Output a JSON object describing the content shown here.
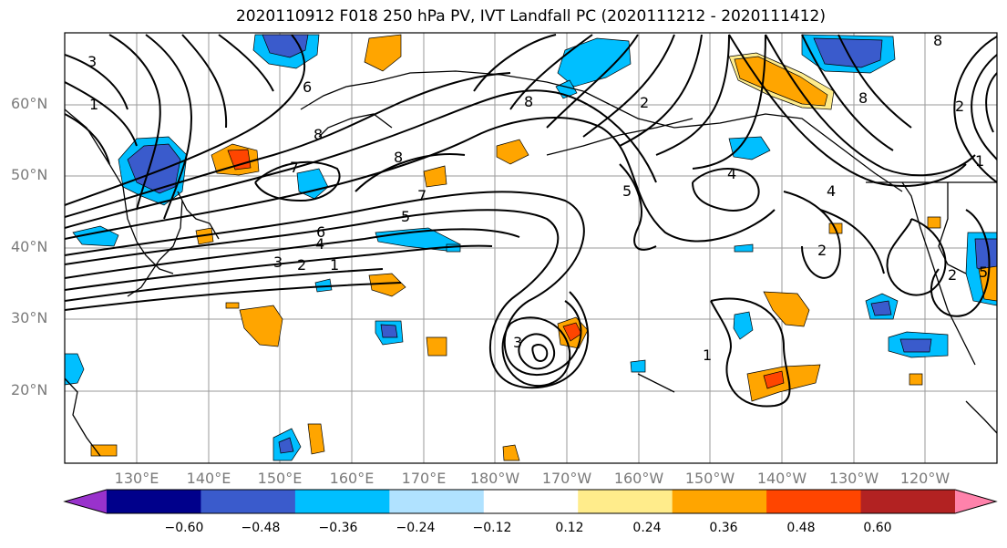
{
  "title": "2020110912 F018 250 hPa PV, IVT Landfall PC (2020111212 - 2020111412)",
  "latitude_labels": [
    "60°N",
    "50°N",
    "40°N",
    "30°N",
    "20°N"
  ],
  "longitude_labels": [
    "130°E",
    "140°E",
    "150°E",
    "160°E",
    "170°E",
    "180°W",
    "170°W",
    "160°W",
    "150°W",
    "140°W",
    "130°W",
    "120°W"
  ],
  "colorbar": {
    "tick_labels": [
      "−0.60",
      "−0.48",
      "−0.36",
      "−0.24",
      "−0.12",
      "0.12",
      "0.24",
      "0.36",
      "0.48",
      "0.60"
    ],
    "colors": [
      "#9932cc",
      "#00008b",
      "#3a5bcc",
      "#00bfff",
      "#b0e2ff",
      "#ffffff",
      "#ffec8b",
      "#ffa500",
      "#ff4500",
      "#b22222",
      "#ff82ab"
    ]
  },
  "contour_labels": [
    "3",
    "1",
    "8",
    "8",
    "8",
    "7",
    "7",
    "6",
    "5",
    "4",
    "3",
    "2",
    "1",
    "2",
    "5",
    "4",
    "4",
    "2",
    "1",
    "3",
    "8",
    "8",
    "2",
    "1",
    "2",
    "5",
    "6"
  ]
}
